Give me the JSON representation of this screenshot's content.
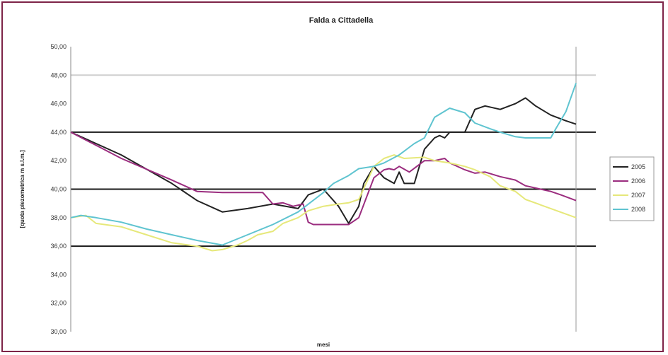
{
  "chart_data": {
    "type": "line",
    "title": "Falda a Cittadella",
    "xlabel": "mesi",
    "ylabel": "[quota piezometrica m s.l.m.]",
    "ylim": [
      25,
      50
    ],
    "yticks": [
      {
        "value": 50,
        "label": "50,00"
      },
      {
        "value": 47.5,
        "label": "48,00"
      },
      {
        "value": 45,
        "label": "46,00"
      },
      {
        "value": 42.5,
        "label": "44,00"
      },
      {
        "value": 40,
        "label": "42,00"
      },
      {
        "value": 37.5,
        "label": "40,00"
      },
      {
        "value": 35,
        "label": "38,00"
      },
      {
        "value": 32.5,
        "label": "36,00"
      },
      {
        "value": 30,
        "label": "34,00"
      },
      {
        "value": 27.5,
        "label": "32,00"
      },
      {
        "value": 25,
        "label": "30,00"
      }
    ],
    "grid_bold": [
      32.5,
      37.5,
      42.5
    ],
    "grid_light": [
      47.5
    ],
    "xlim": [
      0,
      100
    ],
    "legend_position": "right",
    "series": [
      {
        "name": "2005",
        "color": "#222222",
        "x": [
          0,
          10,
          20,
          25,
          30,
          35,
          40,
          45,
          47,
          50,
          53,
          55,
          57,
          58,
          60,
          62,
          64,
          65,
          66,
          68,
          70,
          72,
          73,
          74,
          75,
          78,
          80,
          82,
          85,
          88,
          90,
          92,
          95,
          98,
          100
        ],
        "y": [
          42.5,
          40.5,
          38.0,
          36.5,
          35.5,
          35.8,
          36.2,
          35.8,
          37.0,
          37.5,
          36.0,
          34.5,
          36.0,
          38.0,
          39.5,
          38.5,
          38.0,
          39.0,
          38.0,
          38.0,
          41.0,
          42.0,
          42.2,
          42.0,
          42.5,
          42.5,
          44.5,
          44.8,
          44.5,
          45.0,
          45.5,
          44.8,
          44.0,
          43.5,
          43.2
        ]
      },
      {
        "name": "2006",
        "color": "#9b2d7f",
        "x": [
          0,
          10,
          20,
          25,
          30,
          35,
          38,
          40,
          42,
          44,
          46,
          47,
          48,
          50,
          52,
          55,
          57,
          60,
          62,
          63,
          64,
          65,
          67,
          70,
          72,
          74,
          75,
          78,
          80,
          82,
          85,
          88,
          90,
          92,
          95,
          97,
          100
        ],
        "y": [
          42.5,
          40.2,
          38.3,
          37.3,
          37.2,
          37.2,
          37.2,
          36.2,
          36.3,
          36.0,
          36.2,
          34.6,
          34.4,
          34.4,
          34.4,
          34.4,
          35.0,
          38.5,
          39.2,
          39.3,
          39.2,
          39.5,
          39.0,
          40.0,
          40.0,
          40.2,
          39.8,
          39.2,
          38.9,
          39.0,
          38.6,
          38.3,
          37.8,
          37.6,
          37.3,
          37.0,
          36.5
        ]
      },
      {
        "name": "2007",
        "color": "#e6e87a",
        "x": [
          0,
          3,
          5,
          10,
          15,
          20,
          25,
          28,
          30,
          33,
          35,
          37,
          40,
          42,
          45,
          47,
          50,
          53,
          55,
          57,
          60,
          62,
          64,
          66,
          70,
          72,
          75,
          78,
          80,
          83,
          85,
          88,
          90,
          95,
          100
        ],
        "y": [
          35.0,
          35.2,
          34.5,
          34.2,
          33.5,
          32.8,
          32.5,
          32.1,
          32.2,
          32.6,
          33.0,
          33.5,
          33.8,
          34.5,
          35.0,
          35.6,
          36.0,
          36.2,
          36.3,
          36.6,
          39.5,
          40.2,
          40.5,
          40.2,
          40.3,
          40.0,
          39.8,
          39.5,
          39.2,
          38.6,
          37.8,
          37.3,
          36.6,
          35.8,
          35.0
        ]
      },
      {
        "name": "2008",
        "color": "#5fc4d0",
        "x": [
          0,
          2,
          5,
          10,
          15,
          20,
          25,
          30,
          35,
          40,
          45,
          50,
          52,
          55,
          57,
          60,
          62,
          65,
          68,
          70,
          72,
          75,
          78,
          80,
          83,
          85,
          88,
          90,
          93,
          95,
          96,
          98,
          100
        ],
        "y": [
          35.0,
          35.2,
          35.0,
          34.6,
          34.0,
          33.5,
          33.0,
          32.6,
          33.5,
          34.4,
          35.5,
          37.2,
          38.0,
          38.7,
          39.3,
          39.5,
          39.8,
          40.5,
          41.5,
          42.0,
          43.8,
          44.6,
          44.2,
          43.3,
          42.8,
          42.5,
          42.1,
          42.0,
          42.0,
          42.0,
          42.8,
          44.3,
          46.8
        ]
      }
    ]
  }
}
